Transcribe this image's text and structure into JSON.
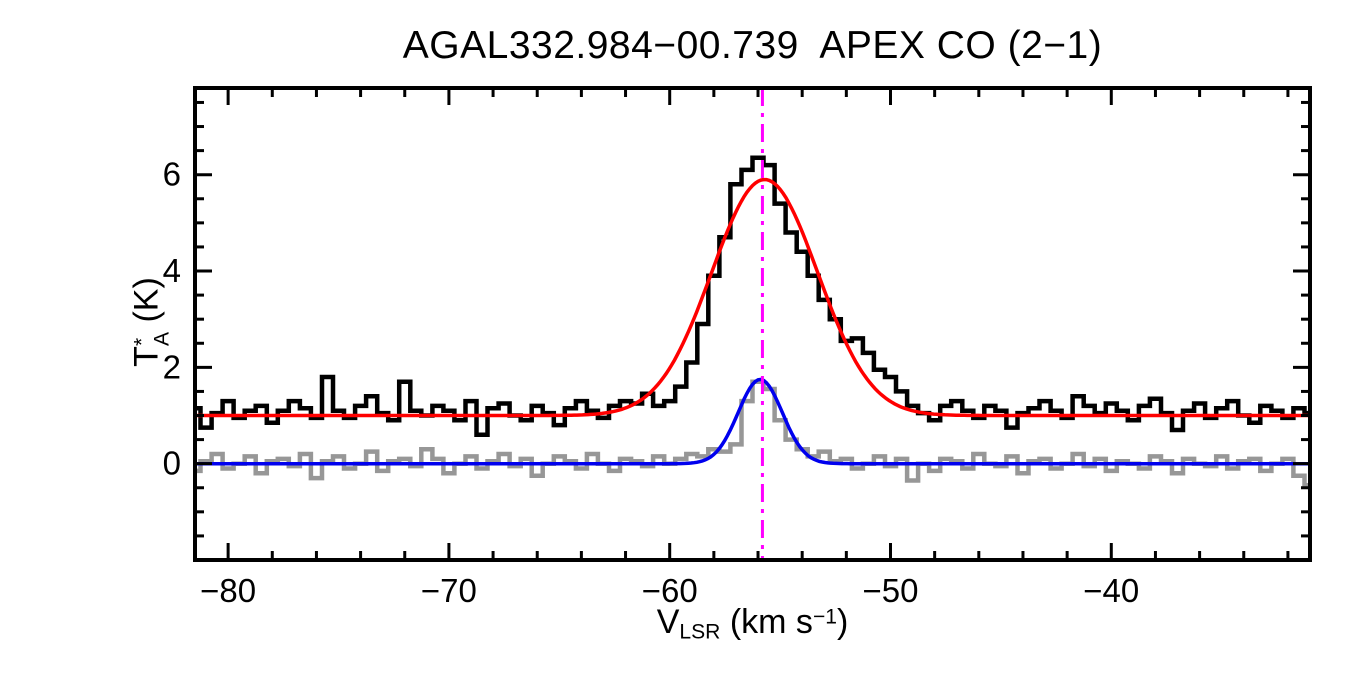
{
  "title": "AGAL332.984−00.739  APEX CO (2−1)",
  "labels": {
    "ylabel": {
      "base": "T",
      "sup": "*",
      "sub": "A",
      "unit": " (K)"
    },
    "xlabel": {
      "base": "V",
      "sub": "LSR",
      "mid": " (km s",
      "sup": "−1",
      "end": ")"
    }
  },
  "chart_data": {
    "type": "line",
    "title": "AGAL332.984−00.739  APEX CO (2−1)",
    "xlabel": "V_LSR (km s^−1)",
    "ylabel": "T*_A (K)",
    "xlim": [
      -81.5,
      -31
    ],
    "ylim": [
      -2,
      7.8
    ],
    "grid": false,
    "legend": "none",
    "x_major_ticks": [
      -80,
      -70,
      -60,
      -50,
      -40
    ],
    "x_tick_labels": [
      "−80",
      "−70",
      "−60",
      "−50",
      "−40"
    ],
    "x_minor_step": 2,
    "y_major_ticks": [
      0,
      2,
      4,
      6
    ],
    "y_tick_labels": [
      "0",
      "2",
      "4",
      "6"
    ],
    "y_minor_step": 0.5,
    "x_start": -81.5,
    "x_step": 0.5,
    "series": [
      {
        "name": "main-spectrum",
        "style": "histogram",
        "color": "#000000",
        "line_width": 4.5,
        "values": [
          1.15,
          0.75,
          1.05,
          1.3,
          0.95,
          1.1,
          1.2,
          0.85,
          1.1,
          1.3,
          1.15,
          0.95,
          1.8,
          1.1,
          0.95,
          1.2,
          1.4,
          1.05,
          0.9,
          1.7,
          1.1,
          1.0,
          1.2,
          1.1,
          0.9,
          1.3,
          0.6,
          1.15,
          1.25,
          1.0,
          0.9,
          1.2,
          1.05,
          0.8,
          1.15,
          1.3,
          1.1,
          0.95,
          1.2,
          1.3,
          1.25,
          1.45,
          1.2,
          1.3,
          1.6,
          2.1,
          2.9,
          3.9,
          4.7,
          5.8,
          6.1,
          6.35,
          6.2,
          5.4,
          4.8,
          4.4,
          3.9,
          3.4,
          3.0,
          2.55,
          2.6,
          2.3,
          1.95,
          1.8,
          1.5,
          1.2,
          1.05,
          0.9,
          1.2,
          1.3,
          1.1,
          0.95,
          1.2,
          1.1,
          0.75,
          1.05,
          1.15,
          1.3,
          1.1,
          0.95,
          1.4,
          1.2,
          1.05,
          1.25,
          1.1,
          0.9,
          1.2,
          1.35,
          1.05,
          0.7,
          1.1,
          1.25,
          0.95,
          1.15,
          1.3,
          1.0,
          0.85,
          1.2,
          1.1,
          0.95,
          1.15,
          1.05
        ]
      },
      {
        "name": "secondary-spectrum",
        "style": "histogram",
        "color": "#979797",
        "line_width": 4.5,
        "values": [
          -0.15,
          0.05,
          0.2,
          -0.1,
          0.0,
          0.15,
          -0.2,
          0.05,
          0.1,
          -0.05,
          0.2,
          -0.3,
          0.05,
          0.15,
          -0.1,
          0.0,
          0.25,
          -0.15,
          0.05,
          0.1,
          -0.05,
          0.3,
          0.1,
          -0.2,
          0.0,
          0.15,
          -0.1,
          0.05,
          0.2,
          -0.05,
          0.1,
          -0.25,
          0.0,
          0.15,
          0.05,
          -0.1,
          0.2,
          0.0,
          -0.15,
          0.1,
          0.05,
          -0.05,
          0.15,
          0.0,
          0.1,
          0.2,
          0.15,
          0.3,
          0.25,
          0.4,
          1.3,
          1.7,
          1.55,
          0.9,
          0.5,
          0.3,
          0.15,
          0.25,
          0.05,
          0.1,
          -0.1,
          0.0,
          0.15,
          -0.05,
          0.1,
          -0.35,
          0.0,
          -0.15,
          0.1,
          0.05,
          -0.1,
          0.2,
          0.0,
          -0.05,
          0.15,
          -0.2,
          0.05,
          0.1,
          -0.1,
          0.0,
          0.2,
          -0.05,
          0.1,
          -0.15,
          0.05,
          0.0,
          -0.1,
          0.15,
          0.05,
          -0.2,
          0.1,
          0.0,
          -0.05,
          0.15,
          -0.1,
          0.05,
          0.1,
          -0.15,
          0.0,
          0.1,
          -0.25,
          -0.45
        ]
      }
    ],
    "fits": [
      {
        "name": "gaussian-fit-main",
        "color": "#ff0000",
        "baseline": 1.0,
        "amplitude": 4.9,
        "center": -55.7,
        "sigma": 2.4,
        "line_width": 3.5
      },
      {
        "name": "gaussian-fit-secondary",
        "color": "#0000ee",
        "baseline": 0.0,
        "amplitude": 1.75,
        "center": -55.9,
        "sigma": 1.0,
        "line_width": 3.5
      }
    ],
    "vline": {
      "x": -55.8,
      "color": "#ff00ff",
      "style": "dash-dot",
      "line_width": 3
    }
  }
}
